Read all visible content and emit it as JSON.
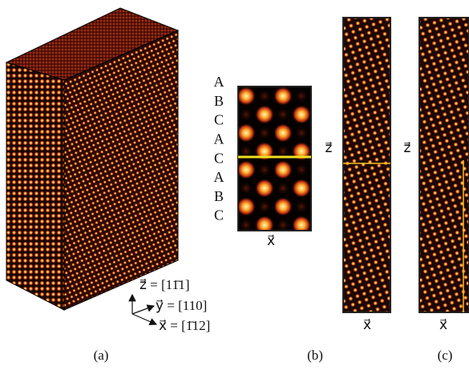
{
  "figure": {
    "stacking": [
      "A",
      "B",
      "C",
      "A",
      "C",
      "A",
      "B",
      "C"
    ],
    "axes": {
      "z": "z⃗ = [11̄1]",
      "y": "y⃗ = [110]",
      "x": "x⃗ = [1̄12]"
    },
    "panel_b": {
      "x_label": "x⃗"
    },
    "panel_c": [
      {
        "x_label": "x⃗",
        "z_label": "z⃗"
      },
      {
        "x_label": "x⃗",
        "z_label": "z⃗"
      }
    ],
    "panel_labels": [
      "(a)",
      "(b)",
      "(c)"
    ]
  }
}
